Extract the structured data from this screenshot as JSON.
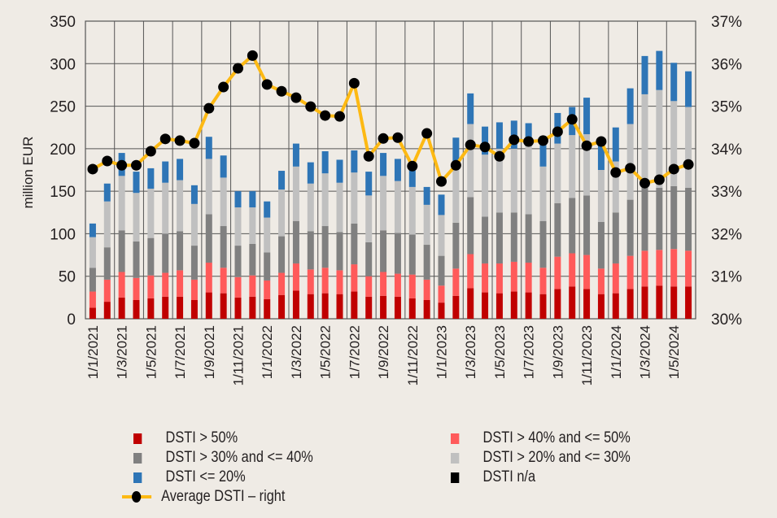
{
  "chart_data": {
    "type": "bar",
    "stacked": true,
    "title": "",
    "xlabel": "",
    "ylabel": "million EUR",
    "y2label": "",
    "ylim": [
      0,
      350
    ],
    "y_ticks": [
      "0",
      "50",
      "100",
      "150",
      "200",
      "250",
      "300",
      "350"
    ],
    "y2lim": [
      30,
      37
    ],
    "y2_ticks": [
      "30%",
      "31%",
      "32%",
      "33%",
      "34%",
      "35%",
      "36%",
      "37%"
    ],
    "grid": true,
    "legend_position": "bottom",
    "categories": [
      "1/1/2021",
      "1/2/2021",
      "1/3/2021",
      "1/4/2021",
      "1/5/2021",
      "1/6/2021",
      "1/7/2021",
      "1/8/2021",
      "1/9/2021",
      "1/10/2021",
      "1/11/2021",
      "1/12/2021",
      "1/1/2022",
      "1/2/2022",
      "1/3/2022",
      "1/4/2022",
      "1/5/2022",
      "1/6/2022",
      "1/7/2022",
      "1/8/2022",
      "1/9/2022",
      "1/10/2022",
      "1/11/2022",
      "1/12/2022",
      "1/1/2023",
      "1/2/2023",
      "1/3/2023",
      "1/4/2023",
      "1/5/2023",
      "1/6/2023",
      "1/7/2023",
      "1/8/2023",
      "1/9/2023",
      "1/10/2023",
      "1/11/2023",
      "1/12/2023",
      "1/1/2024",
      "1/2/2024",
      "1/3/2024",
      "1/4/2024",
      "1/5/2024",
      "1/6/2024"
    ],
    "x_tick_labels": [
      "1/1/2021",
      "1/3/2021",
      "1/5/2021",
      "1/7/2021",
      "1/9/2021",
      "1/11/2021",
      "1/1/2022",
      "1/3/2022",
      "1/5/2022",
      "1/7/2022",
      "1/9/2022",
      "1/11/2022",
      "1/1/2023",
      "1/3/2023",
      "1/5/2023",
      "1/7/2023",
      "1/9/2023",
      "1/11/2023",
      "1/1/2024",
      "1/3/2024",
      "1/5/2024"
    ],
    "series": [
      {
        "name": "DSTI > 50%",
        "color": "#c00000",
        "axis": "left",
        "values": [
          13,
          20,
          25,
          22,
          24,
          26,
          26,
          22,
          31,
          30,
          25,
          26,
          23,
          28,
          33,
          29,
          30,
          29,
          32,
          26,
          27,
          26,
          24,
          22,
          19,
          27,
          36,
          31,
          30,
          32,
          31,
          29,
          35,
          38,
          35,
          29,
          30,
          35,
          38,
          39,
          38,
          38
        ]
      },
      {
        "name": "DSTI > 40% and <= 50%",
        "color": "#ff5a5a",
        "axis": "left",
        "values": [
          19,
          26,
          30,
          26,
          27,
          28,
          31,
          24,
          35,
          30,
          24,
          25,
          22,
          26,
          32,
          29,
          30,
          28,
          32,
          24,
          28,
          27,
          28,
          24,
          20,
          32,
          40,
          34,
          35,
          35,
          35,
          31,
          38,
          39,
          40,
          30,
          35,
          39,
          42,
          42,
          44,
          42
        ]
      },
      {
        "name": "DSTI > 30% and <= 40%",
        "color": "#808080",
        "axis": "left",
        "values": [
          28,
          38,
          49,
          43,
          44,
          46,
          46,
          40,
          57,
          49,
          37,
          37,
          33,
          43,
          50,
          45,
          49,
          45,
          48,
          40,
          49,
          48,
          47,
          41,
          35,
          54,
          67,
          55,
          60,
          58,
          57,
          55,
          63,
          65,
          70,
          55,
          60,
          66,
          76,
          73,
          74,
          74
        ]
      },
      {
        "name": "DSTI > 20% and <= 30%",
        "color": "#c0c0c0",
        "axis": "left",
        "values": [
          36,
          54,
          64,
          57,
          58,
          60,
          60,
          49,
          65,
          57,
          45,
          43,
          41,
          55,
          64,
          56,
          62,
          58,
          60,
          55,
          64,
          61,
          56,
          47,
          48,
          66,
          86,
          73,
          75,
          75,
          80,
          64,
          70,
          74,
          72,
          61,
          60,
          89,
          108,
          115,
          100,
          95
        ]
      },
      {
        "name": "DSTI <= 20%",
        "color": "#2e75b6",
        "axis": "left",
        "values": [
          16,
          21,
          27,
          25,
          24,
          25,
          25,
          22,
          26,
          26,
          19,
          19,
          19,
          22,
          27,
          25,
          26,
          27,
          26,
          28,
          27,
          26,
          25,
          21,
          24,
          34,
          36,
          33,
          31,
          33,
          27,
          36,
          36,
          33,
          43,
          29,
          40,
          42,
          45,
          46,
          45,
          42
        ]
      },
      {
        "name": "DSTI n/a",
        "color": "#000000",
        "axis": "left",
        "values": [
          0,
          0,
          0,
          0,
          0,
          0,
          0,
          0,
          0,
          0,
          0,
          0,
          0,
          0,
          0,
          0,
          0,
          0,
          0,
          0,
          0,
          0,
          0,
          0,
          0,
          0,
          0,
          0,
          0,
          0,
          0,
          0,
          0,
          0,
          0,
          0,
          0,
          0,
          0,
          0,
          0,
          0
        ]
      },
      {
        "name": "Average DSTI – right",
        "type": "line",
        "color": "#fdb913",
        "marker_color": "#000000",
        "axis": "right",
        "unit": "%",
        "values": [
          33.52,
          33.71,
          33.61,
          33.61,
          33.94,
          34.23,
          34.19,
          34.13,
          34.95,
          35.45,
          35.89,
          36.19,
          35.51,
          35.35,
          35.2,
          34.99,
          34.78,
          34.76,
          35.54,
          33.82,
          34.24,
          34.26,
          33.59,
          34.36,
          33.23,
          33.61,
          34.09,
          34.04,
          33.82,
          34.21,
          34.17,
          34.19,
          34.4,
          34.69,
          34.07,
          34.17,
          33.44,
          33.54,
          33.19,
          33.27,
          33.52,
          33.63
        ]
      }
    ]
  },
  "legend": {
    "items": [
      {
        "label": "DSTI > 50%",
        "color": "#c00000",
        "kind": "box"
      },
      {
        "label": "DSTI > 40% and <= 50%",
        "color": "#ff5a5a",
        "kind": "box"
      },
      {
        "label": "DSTI > 30% and <= 40%",
        "color": "#808080",
        "kind": "box"
      },
      {
        "label": "DSTI > 20% and <= 30%",
        "color": "#c0c0c0",
        "kind": "box"
      },
      {
        "label": "DSTI <= 20%",
        "color": "#2e75b6",
        "kind": "box"
      },
      {
        "label": "DSTI n/a",
        "color": "#000000",
        "kind": "box"
      },
      {
        "label": "Average DSTI – right",
        "color": "#fdb913",
        "kind": "line"
      }
    ]
  },
  "colors": {
    "background": "#efebe5",
    "grid": "#555555",
    "text": "#231f20"
  }
}
